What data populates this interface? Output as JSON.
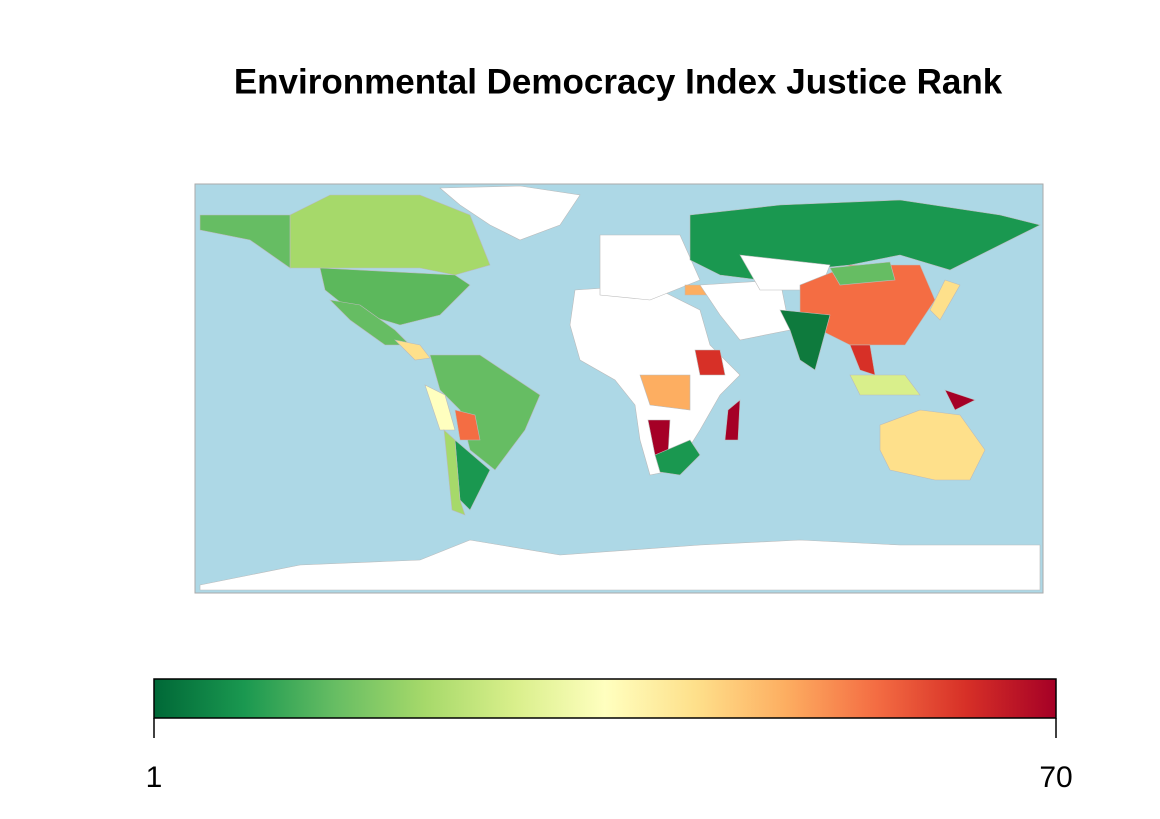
{
  "chart_data": {
    "type": "choropleth",
    "title": "Environmental Democracy Index  Justice Rank",
    "colorbar": {
      "lim": [
        1,
        70
      ],
      "ticks": [
        1,
        70
      ],
      "colors": [
        "#006837",
        "#1a9850",
        "#66bd63",
        "#a6d96a",
        "#d9ef8b",
        "#ffffbf",
        "#fee08b",
        "#fdae61",
        "#f46d43",
        "#d73027",
        "#a50026"
      ]
    }
  }
}
